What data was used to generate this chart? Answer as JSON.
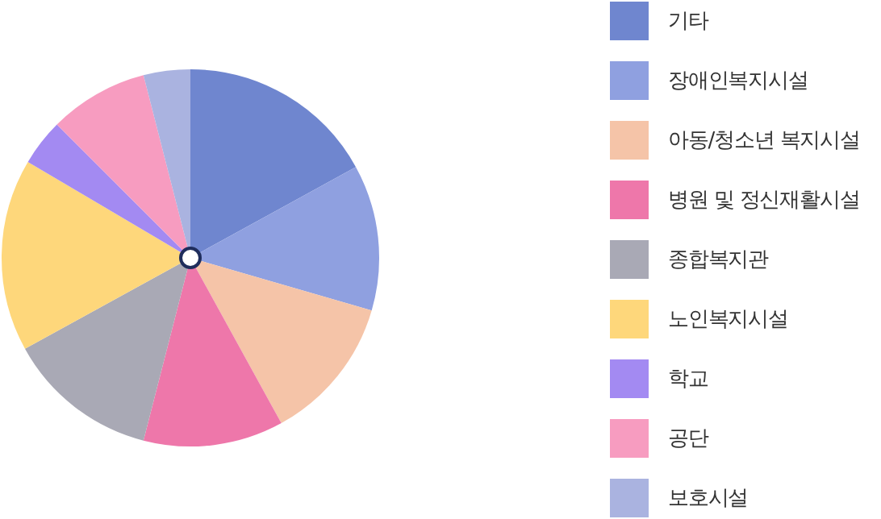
{
  "chart_data": {
    "type": "pie",
    "categories": [
      "기타",
      "장애인복지시설",
      "아동/청소년 복지시설",
      "병원 및 정신재활시설",
      "종합복지관",
      "노인복지시설",
      "학교",
      "공단",
      "보호시설"
    ],
    "values": [
      17,
      12.5,
      12.5,
      12,
      13,
      16.5,
      4,
      8.5,
      4
    ],
    "colors": [
      "#6f86cf",
      "#8fa0e0",
      "#f5c4a8",
      "#ee77aa",
      "#a9a9b5",
      "#fed77b",
      "#a38af2",
      "#f79cc0",
      "#aab3e0"
    ],
    "legend": "right"
  }
}
